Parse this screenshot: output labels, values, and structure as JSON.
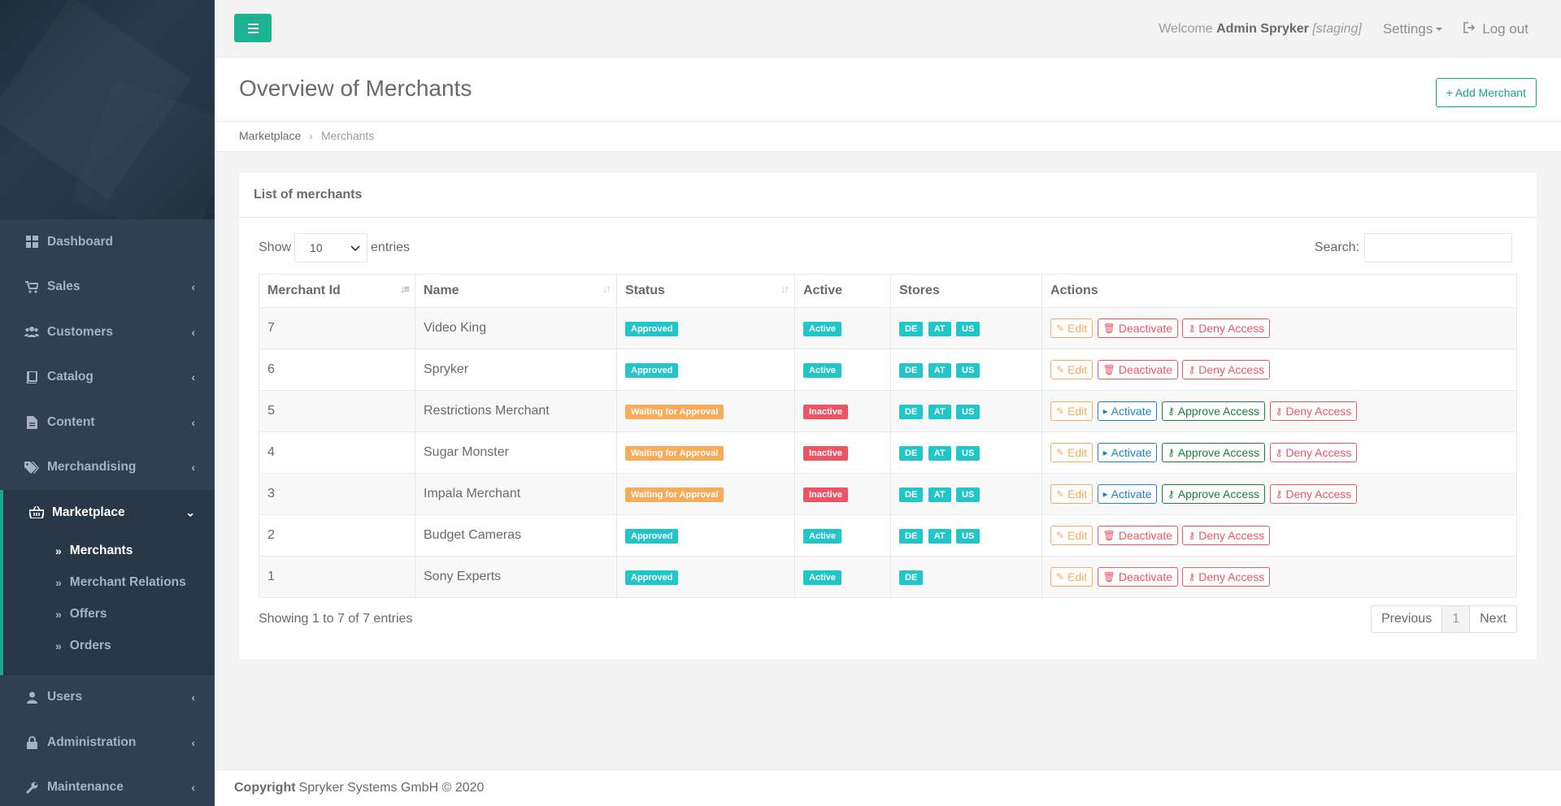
{
  "topbar": {
    "welcome": "Welcome",
    "user": "Admin Spryker",
    "env": "[staging]",
    "settings": "Settings",
    "logout": "Log out"
  },
  "sidebar": {
    "items": [
      {
        "label": "Dashboard",
        "icon": "dashboard-icon"
      },
      {
        "label": "Sales",
        "icon": "cart-icon"
      },
      {
        "label": "Customers",
        "icon": "users-icon"
      },
      {
        "label": "Catalog",
        "icon": "book-icon"
      },
      {
        "label": "Content",
        "icon": "file-icon"
      },
      {
        "label": "Merchandising",
        "icon": "tags-icon"
      },
      {
        "label": "Marketplace",
        "icon": "basket-icon"
      },
      {
        "label": "Users",
        "icon": "user-icon"
      },
      {
        "label": "Administration",
        "icon": "lock-icon"
      },
      {
        "label": "Maintenance",
        "icon": "wrench-icon"
      }
    ],
    "subitems": [
      "Merchants",
      "Merchant Relations",
      "Offers",
      "Orders"
    ]
  },
  "heading": {
    "title": "Overview of Merchants",
    "add_button": "Add Merchant",
    "breadcrumb": [
      "Marketplace",
      "Merchants"
    ]
  },
  "panel": {
    "title": "List of merchants",
    "show": "Show",
    "show_value": "10",
    "entries": "entries",
    "search_label": "Search:",
    "info": "Showing 1 to 7 of 7 entries",
    "pager": [
      "Previous",
      "1",
      "Next"
    ]
  },
  "table": {
    "headers": [
      "Merchant Id",
      "Name",
      "Status",
      "Active",
      "Stores",
      "Actions"
    ],
    "rows": [
      {
        "id": "7",
        "name": "Video King",
        "status": "Approved",
        "active": "Active",
        "stores": [
          "DE",
          "AT",
          "US"
        ],
        "actions": [
          "Edit",
          "Deactivate",
          "Deny Access"
        ]
      },
      {
        "id": "6",
        "name": "Spryker",
        "status": "Approved",
        "active": "Active",
        "stores": [
          "DE",
          "AT",
          "US"
        ],
        "actions": [
          "Edit",
          "Deactivate",
          "Deny Access"
        ]
      },
      {
        "id": "5",
        "name": "Restrictions Merchant",
        "status": "Waiting for Approval",
        "active": "Inactive",
        "stores": [
          "DE",
          "AT",
          "US"
        ],
        "actions": [
          "Edit",
          "Activate",
          "Approve Access",
          "Deny Access"
        ]
      },
      {
        "id": "4",
        "name": "Sugar Monster",
        "status": "Waiting for Approval",
        "active": "Inactive",
        "stores": [
          "DE",
          "AT",
          "US"
        ],
        "actions": [
          "Edit",
          "Activate",
          "Approve Access",
          "Deny Access"
        ]
      },
      {
        "id": "3",
        "name": "Impala Merchant",
        "status": "Waiting for Approval",
        "active": "Inactive",
        "stores": [
          "DE",
          "AT",
          "US"
        ],
        "actions": [
          "Edit",
          "Activate",
          "Approve Access",
          "Deny Access"
        ]
      },
      {
        "id": "2",
        "name": "Budget Cameras",
        "status": "Approved",
        "active": "Active",
        "stores": [
          "DE",
          "AT",
          "US"
        ],
        "actions": [
          "Edit",
          "Deactivate",
          "Deny Access"
        ]
      },
      {
        "id": "1",
        "name": "Sony Experts",
        "status": "Approved",
        "active": "Active",
        "stores": [
          "DE"
        ],
        "actions": [
          "Edit",
          "Deactivate",
          "Deny Access"
        ]
      }
    ]
  },
  "footer": {
    "copyright": "Copyright",
    "text": "Spryker Systems GmbH © 2020"
  },
  "colors": {
    "primary": "#1ab394",
    "teal_label": "#23c6c8",
    "orange_label": "#f8ac59",
    "red_label": "#ed5565",
    "sidebar": "#2f4050"
  }
}
